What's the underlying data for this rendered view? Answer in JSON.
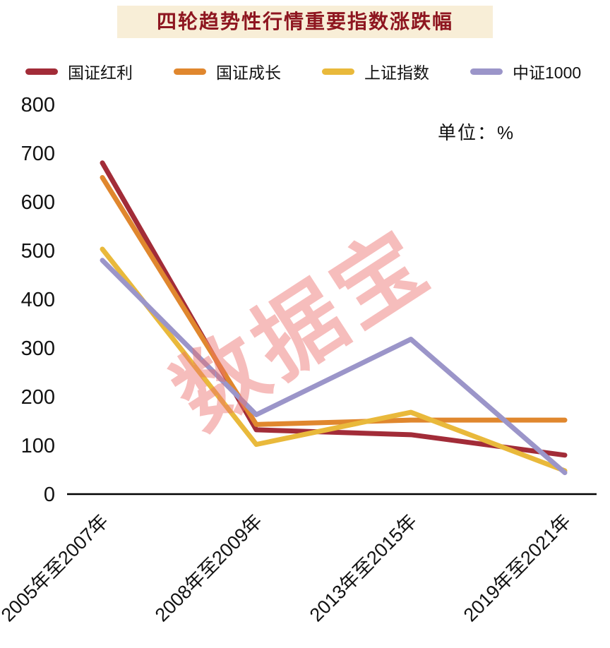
{
  "watermark": {
    "text": "数据宝"
  },
  "chart_data": {
    "type": "line",
    "title": "四轮趋势性行情重要指数涨跌幅",
    "unit_label": "单位：%",
    "xlabel": "",
    "ylabel": "",
    "ylim": [
      0,
      800
    ],
    "ytick_step": 100,
    "grid": false,
    "legend_position": "top",
    "categories": [
      "2005年至2007年",
      "2008年至2009年",
      "2013年至2015年",
      "2019年至2021年"
    ],
    "series": [
      {
        "name": "国证红利",
        "color": "#a22c38",
        "values": [
          680,
          132,
          122,
          80
        ]
      },
      {
        "name": "国证成长",
        "color": "#e0872e",
        "values": [
          650,
          143,
          152,
          152
        ]
      },
      {
        "name": "上证指数",
        "color": "#e9b93b",
        "values": [
          503,
          102,
          168,
          48
        ]
      },
      {
        "name": "中证1000",
        "color": "#9b95c9",
        "values": [
          480,
          163,
          318,
          44
        ]
      }
    ],
    "colors": {
      "title_text": "#8e1620",
      "title_background": "#f8eed7",
      "axis": "#000000",
      "tick_text": "#111111",
      "watermark": "#eb6c6a"
    }
  }
}
